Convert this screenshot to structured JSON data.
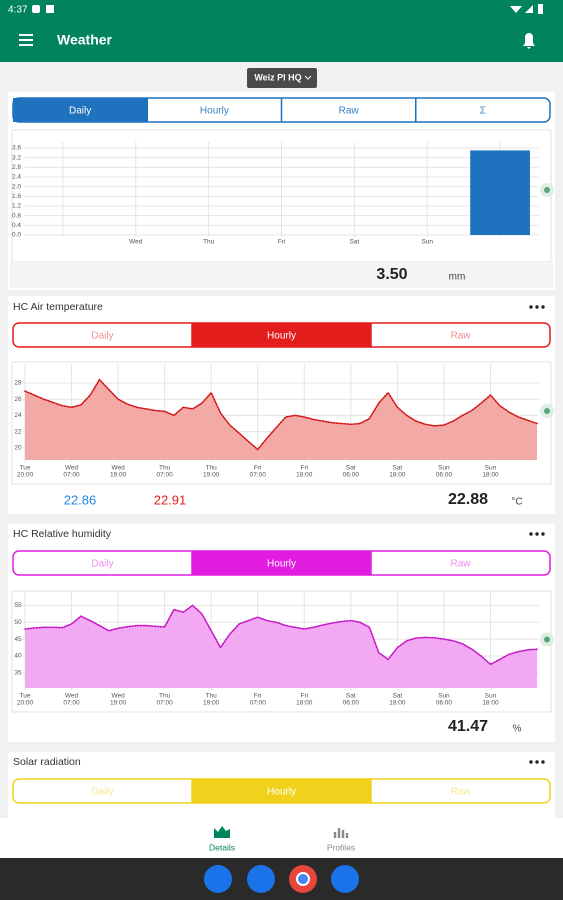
{
  "status_bar": {
    "time": "4:37"
  },
  "app_bar": {
    "title": "Weather"
  },
  "station": "Weiz PI HQ",
  "cards": [
    {
      "tabs": [
        "Daily",
        "Hourly",
        "Raw",
        "Σ"
      ],
      "active_tab": 0,
      "color": "#1f72bd",
      "chart": {
        "type": "bar",
        "categories": [
          null,
          "Wed",
          "Thu",
          "Fri",
          "Sat",
          "Sun",
          null
        ],
        "values": [
          0,
          0,
          0,
          0,
          0,
          0,
          3.5
        ],
        "color": "#1f72bd",
        "ylim": [
          0,
          3.6
        ],
        "yticks": [
          {
            "value": 0,
            "label": "0.0"
          },
          0.4,
          0.8,
          1.2,
          1.6,
          {
            "value": 2,
            "label": "2.0"
          },
          2.4,
          2.8,
          3.2,
          3.6
        ],
        "grid": true
      },
      "readings": {
        "current": "3.50",
        "unit": "mm"
      }
    },
    {
      "title": "HC Air temperature",
      "tabs": [
        "Daily",
        "Hourly",
        "Raw"
      ],
      "active_tab": 1,
      "color": "#e31c1c",
      "chart": {
        "type": "line",
        "categories": [
          {
            "day": "Tue",
            "time": "20:00"
          },
          null,
          null,
          null,
          null,
          {
            "day": "Wed",
            "time": "07:00"
          },
          null,
          null,
          null,
          null,
          {
            "day": "Wed",
            "time": "19:00"
          },
          null,
          null,
          null,
          null,
          {
            "day": "Thu",
            "time": "07:00"
          },
          null,
          null,
          null,
          null,
          {
            "day": "Thu",
            "time": "19:00"
          },
          null,
          null,
          null,
          null,
          {
            "day": "Fri",
            "time": "07:00"
          },
          null,
          null,
          null,
          null,
          {
            "day": "Fri",
            "time": "18:00"
          },
          null,
          null,
          null,
          null,
          {
            "day": "Sat",
            "time": "06:00"
          },
          null,
          null,
          null,
          null,
          {
            "day": "Sat",
            "time": "18:00"
          },
          null,
          null,
          null,
          null,
          {
            "day": "Sun",
            "time": "06:00"
          },
          null,
          null,
          null,
          null,
          {
            "day": "Sun",
            "time": "18:00"
          },
          null,
          null,
          null,
          null,
          null
        ],
        "values": [
          27.0,
          26.5,
          26.0,
          25.6,
          25.2,
          25.0,
          25.3,
          26.5,
          28.4,
          27.2,
          26.0,
          25.4,
          25.0,
          24.8,
          24.6,
          24.5,
          24.0,
          25.0,
          24.8,
          25.5,
          26.8,
          24.3,
          22.8,
          21.8,
          20.8,
          19.8,
          21.2,
          22.5,
          23.8,
          24.0,
          23.8,
          23.5,
          23.3,
          23.1,
          23.0,
          22.9,
          23.0,
          23.6,
          25.5,
          26.8,
          25.0,
          24.0,
          23.3,
          22.9,
          22.7,
          22.8,
          23.3,
          24.0,
          24.6,
          25.5,
          26.5,
          25.2,
          24.4,
          23.8,
          23.4,
          23.0
        ],
        "color": "#d11515",
        "fill": "#f3aaa6",
        "ylim": [
          18.5,
          29.6
        ],
        "yticks": [
          20,
          22,
          24,
          26,
          28
        ],
        "grid": true
      },
      "readings": {
        "min": "22.86",
        "max": "22.91",
        "current": "22.88",
        "unit": "°C"
      }
    },
    {
      "title": "HC Relative humidity",
      "tabs": [
        "Daily",
        "Hourly",
        "Raw"
      ],
      "active_tab": 1,
      "color": "#e01de0",
      "chart": {
        "type": "line",
        "categories": [
          {
            "day": "Tue",
            "time": "20:00"
          },
          null,
          null,
          null,
          null,
          {
            "day": "Wed",
            "time": "07:00"
          },
          null,
          null,
          null,
          null,
          {
            "day": "Wed",
            "time": "19:00"
          },
          null,
          null,
          null,
          null,
          {
            "day": "Thu",
            "time": "07:00"
          },
          null,
          null,
          null,
          null,
          {
            "day": "Thu",
            "time": "19:00"
          },
          null,
          null,
          null,
          null,
          {
            "day": "Fri",
            "time": "07:00"
          },
          null,
          null,
          null,
          null,
          {
            "day": "Fri",
            "time": "18:00"
          },
          null,
          null,
          null,
          null,
          {
            "day": "Sat",
            "time": "06:00"
          },
          null,
          null,
          null,
          null,
          {
            "day": "Sat",
            "time": "18:00"
          },
          null,
          null,
          null,
          null,
          {
            "day": "Sun",
            "time": "06:00"
          },
          null,
          null,
          null,
          null,
          {
            "day": "Sun",
            "time": "18:00"
          },
          null,
          null,
          null,
          null,
          null
        ],
        "values": [
          48.0,
          48.3,
          48.5,
          48.5,
          48.4,
          49.5,
          51.8,
          50.5,
          49.0,
          47.5,
          48.2,
          48.7,
          49.0,
          49.0,
          48.8,
          48.6,
          53.8,
          53.0,
          55.0,
          52.5,
          47.5,
          42.5,
          46.5,
          49.5,
          50.5,
          51.5,
          50.5,
          50.0,
          49.0,
          48.5,
          48.0,
          48.5,
          49.2,
          49.8,
          50.2,
          50.5,
          50.0,
          48.5,
          41.0,
          39.0,
          42.5,
          44.5,
          45.3,
          45.5,
          45.4,
          45.0,
          44.5,
          43.6,
          42.0,
          40.0,
          37.5,
          39.0,
          40.5,
          41.3,
          41.8,
          42.0
        ],
        "color": "#c412c4",
        "fill": "#f3a8f3",
        "ylim": [
          30.5,
          57.5
        ],
        "yticks": [
          35,
          40,
          45,
          50,
          55
        ],
        "grid": true
      },
      "readings": {
        "current": "41.47",
        "unit": "%"
      }
    },
    {
      "title": "Solar radiation",
      "tabs": [
        "Daily",
        "Hourly",
        "Raw"
      ],
      "active_tab": 1,
      "color": "#f0d21c"
    }
  ],
  "nav": [
    "Details",
    "Profiles"
  ],
  "active_nav": 0
}
